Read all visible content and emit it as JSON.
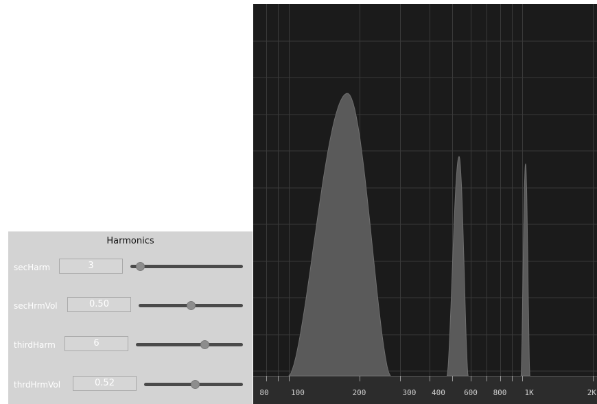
{
  "panel": {
    "title": "Harmonics",
    "controls": [
      {
        "name": "secHarm",
        "value": "3",
        "slider_fraction": 0.05
      },
      {
        "name": "secHrmVol",
        "value": "0.50",
        "slider_fraction": 0.5
      },
      {
        "name": "thirdHarm",
        "value": "6",
        "slider_fraction": 0.66
      },
      {
        "name": "thrdHrmVol",
        "value": "0.52",
        "slider_fraction": 0.52
      }
    ]
  },
  "analyzer": {
    "background": "#1b1b1b",
    "grid_color": "#3a3a3a",
    "fill_color": "#5a5a5a",
    "freq_labels": [
      "80",
      "100",
      "200",
      "300",
      "400",
      "600",
      "800",
      "1K",
      "2K"
    ]
  },
  "chart_data": {
    "type": "area",
    "xscale": "log",
    "xlim": [
      70,
      2000
    ],
    "ylim": [
      0,
      1
    ],
    "peaks": [
      {
        "center": 178,
        "low": 100,
        "high": 272,
        "level": 0.76
      },
      {
        "center": 535,
        "low": 475,
        "high": 585,
        "level": 0.59
      },
      {
        "center": 1030,
        "low": 985,
        "high": 1075,
        "level": 0.57
      }
    ],
    "x_tick_labels": [
      "80",
      "100",
      "200",
      "300",
      "400",
      "600",
      "800",
      "1K",
      "2K"
    ]
  }
}
